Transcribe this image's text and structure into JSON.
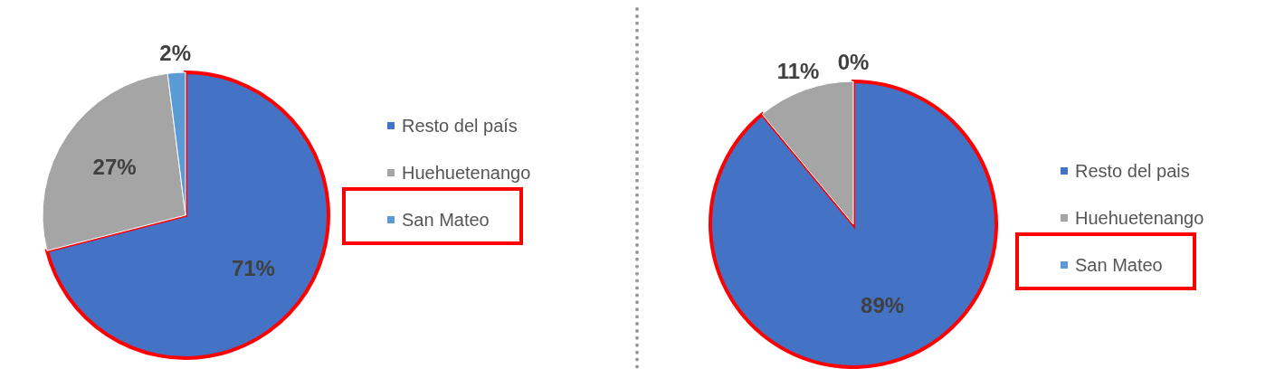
{
  "chart_data": [
    {
      "type": "pie",
      "categories": [
        "Resto del país",
        "Huehuetenango",
        "San Mateo"
      ],
      "values": [
        71,
        27,
        2
      ],
      "value_labels": [
        "71%",
        "27%",
        "2%"
      ],
      "colors": [
        "#4472c4",
        "#a5a5a5",
        "#5b9bd5"
      ],
      "legend": "right"
    },
    {
      "type": "pie",
      "categories": [
        "Resto del pais",
        "Huehuetenango",
        "San Mateo"
      ],
      "values": [
        89,
        11,
        0
      ],
      "value_labels": [
        "89%",
        "11%",
        "0%"
      ],
      "colors": [
        "#4472c4",
        "#a5a5a5",
        "#5b9bd5"
      ],
      "legend": "right"
    }
  ]
}
